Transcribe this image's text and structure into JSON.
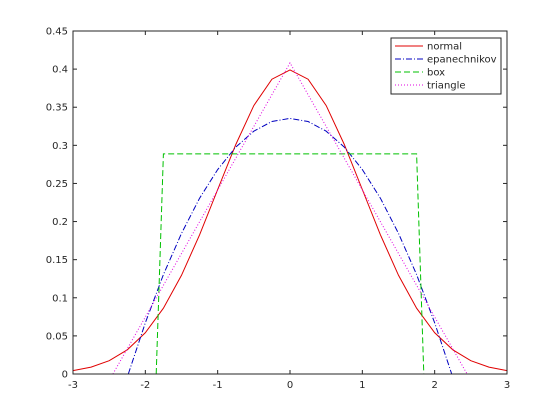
{
  "chart_data": {
    "type": "line",
    "title": "",
    "xlabel": "",
    "ylabel": "",
    "xlim": [
      -3,
      3
    ],
    "ylim": [
      0,
      0.45
    ],
    "xticks": [
      -3,
      -2,
      -1,
      0,
      1,
      2,
      3
    ],
    "yticks": [
      0,
      0.05,
      0.1,
      0.15,
      0.2,
      0.25,
      0.3,
      0.35,
      0.4,
      0.45
    ],
    "xtick_labels": [
      "-3",
      "-2",
      "-1",
      "0",
      "1",
      "2",
      "3"
    ],
    "ytick_labels": [
      "0",
      "0.05",
      "0.1",
      "0.15",
      "0.2",
      "0.25",
      "0.3",
      "0.35",
      "0.4",
      "0.45"
    ],
    "grid": false,
    "legend_position": "top-right",
    "series": [
      {
        "name": "normal",
        "color": "#e00000",
        "style": "solid",
        "x": [
          -3,
          -2.75,
          -2.5,
          -2.25,
          -2,
          -1.75,
          -1.5,
          -1.25,
          -1,
          -0.75,
          -0.5,
          -0.25,
          0,
          0.25,
          0.5,
          0.75,
          1,
          1.25,
          1.5,
          1.75,
          2,
          2.25,
          2.5,
          2.75,
          3
        ],
        "y": [
          0.0044,
          0.0091,
          0.0175,
          0.0317,
          0.054,
          0.0863,
          0.1295,
          0.1826,
          0.242,
          0.3011,
          0.3521,
          0.3867,
          0.3989,
          0.3867,
          0.3521,
          0.3011,
          0.242,
          0.1826,
          0.1295,
          0.0863,
          0.054,
          0.0317,
          0.0175,
          0.0091,
          0.0044
        ]
      },
      {
        "name": "epanechnikov",
        "color": "#0000c0",
        "style": "dashdot",
        "x": [
          -2.236,
          -2,
          -1.75,
          -1.5,
          -1.25,
          -1,
          -0.75,
          -0.5,
          -0.25,
          0,
          0.25,
          0.5,
          0.75,
          1,
          1.25,
          1.5,
          1.75,
          2,
          2.236
        ],
        "y": [
          0,
          0.0671,
          0.1304,
          0.1845,
          0.2307,
          0.2683,
          0.2977,
          0.3186,
          0.3313,
          0.3354,
          0.3313,
          0.3186,
          0.2977,
          0.2683,
          0.2307,
          0.1845,
          0.1304,
          0.0671,
          0
        ]
      },
      {
        "name": "box",
        "color": "#00c000",
        "style": "dashed",
        "x": [
          -3,
          -1.85,
          -1.75,
          1.75,
          1.85,
          3
        ],
        "y": [
          0,
          0,
          0.2887,
          0.2887,
          0,
          0
        ],
        "draw_x": [
          -1.85,
          -1.75,
          1.75,
          1.85
        ]
      },
      {
        "name": "triangle",
        "color": "#e000e0",
        "style": "dotted",
        "x": [
          -2.449,
          0,
          2.449
        ],
        "y": [
          0,
          0.4082,
          0
        ]
      }
    ]
  }
}
